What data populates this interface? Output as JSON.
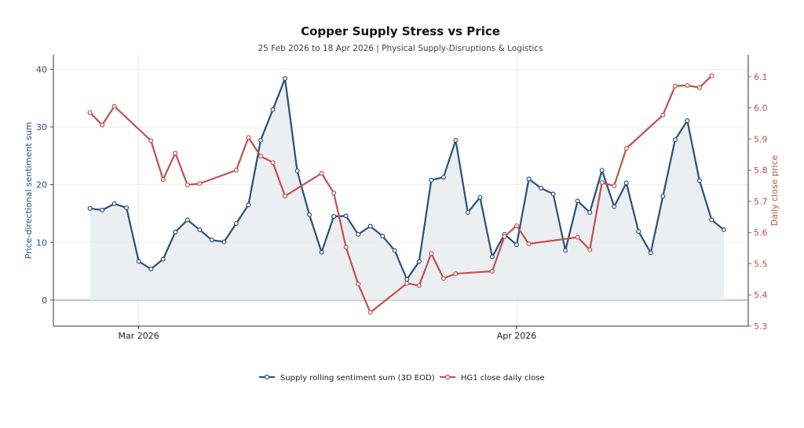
{
  "chart_data": {
    "type": "line",
    "title": "Copper Supply Stress vs Price",
    "subtitle": "25 Feb 2026 to 18 Apr 2026 | Physical Supply-Disruptions & Logistics",
    "ylabel_left": "Price-directional sentiment sum",
    "ylabel_right": "Daily close price",
    "x_ticks": [
      {
        "date": "2026-03-01",
        "label": "Mar 2026"
      },
      {
        "date": "2026-04-01",
        "label": "Apr 2026"
      }
    ],
    "y_left": {
      "range": [
        -4.5,
        42.5
      ],
      "ticks": [
        0,
        10,
        20,
        30,
        40
      ]
    },
    "y_right": {
      "range": [
        5.3,
        6.17
      ],
      "ticks": [
        5.3,
        5.4,
        5.5,
        5.6,
        5.7,
        5.8,
        5.9,
        6.0,
        6.1
      ]
    },
    "x_range": [
      "2026-02-22",
      "2026-04-20"
    ],
    "grid": true,
    "legend_position": "bottom-center",
    "colors": {
      "sentiment": "#2a5078",
      "price": "#c0504d",
      "fill": "#e8ecf0",
      "zero_line": "#888888"
    },
    "series": [
      {
        "name": "Supply rolling sentiment sum (3D EOD)",
        "axis": "left",
        "points": [
          [
            "2026-02-25",
            15.9
          ],
          [
            "2026-02-26",
            15.6
          ],
          [
            "2026-02-27",
            16.7
          ],
          [
            "2026-02-28",
            16.0
          ],
          [
            "2026-03-01",
            6.7
          ],
          [
            "2026-03-02",
            5.4
          ],
          [
            "2026-03-03",
            7.1
          ],
          [
            "2026-03-04",
            11.8
          ],
          [
            "2026-03-05",
            13.9
          ],
          [
            "2026-03-06",
            12.2
          ],
          [
            "2026-03-07",
            10.4
          ],
          [
            "2026-03-08",
            10.1
          ],
          [
            "2026-03-09",
            13.3
          ],
          [
            "2026-03-10",
            16.5
          ],
          [
            "2026-03-11",
            27.7
          ],
          [
            "2026-03-12",
            33.0
          ],
          [
            "2026-03-13",
            38.4
          ],
          [
            "2026-03-14",
            22.4
          ],
          [
            "2026-03-15",
            14.8
          ],
          [
            "2026-03-16",
            8.3
          ],
          [
            "2026-03-17",
            14.5
          ],
          [
            "2026-03-18",
            14.6
          ],
          [
            "2026-03-19",
            11.4
          ],
          [
            "2026-03-20",
            12.8
          ],
          [
            "2026-03-21",
            11.1
          ],
          [
            "2026-03-22",
            8.6
          ],
          [
            "2026-03-23",
            3.6
          ],
          [
            "2026-03-24",
            6.7
          ],
          [
            "2026-03-25",
            20.8
          ],
          [
            "2026-03-26",
            21.3
          ],
          [
            "2026-03-27",
            27.7
          ],
          [
            "2026-03-28",
            15.2
          ],
          [
            "2026-03-29",
            17.8
          ],
          [
            "2026-03-30",
            7.5
          ],
          [
            "2026-03-31",
            11.4
          ],
          [
            "2026-04-01",
            9.6
          ],
          [
            "2026-04-02",
            21.0
          ],
          [
            "2026-04-03",
            19.4
          ],
          [
            "2026-04-04",
            18.4
          ],
          [
            "2026-04-05",
            8.6
          ],
          [
            "2026-04-06",
            17.2
          ],
          [
            "2026-04-07",
            15.2
          ],
          [
            "2026-04-08",
            22.5
          ],
          [
            "2026-04-09",
            16.2
          ],
          [
            "2026-04-10",
            20.3
          ],
          [
            "2026-04-11",
            11.9
          ],
          [
            "2026-04-12",
            8.2
          ],
          [
            "2026-04-13",
            18.0
          ],
          [
            "2026-04-14",
            27.8
          ],
          [
            "2026-04-15",
            31.1
          ],
          [
            "2026-04-16",
            20.7
          ],
          [
            "2026-04-17",
            13.9
          ],
          [
            "2026-04-18",
            12.2
          ]
        ]
      },
      {
        "name": "HG1 close daily close",
        "axis": "right",
        "points": [
          [
            "2026-02-25",
            5.985
          ],
          [
            "2026-02-26",
            5.945
          ],
          [
            "2026-02-27",
            6.005
          ],
          [
            "2026-03-02",
            5.895
          ],
          [
            "2026-03-03",
            5.77
          ],
          [
            "2026-03-04",
            5.855
          ],
          [
            "2026-03-05",
            5.753
          ],
          [
            "2026-03-06",
            5.757
          ],
          [
            "2026-03-09",
            5.8
          ],
          [
            "2026-03-10",
            5.905
          ],
          [
            "2026-03-11",
            5.845
          ],
          [
            "2026-03-12",
            5.825
          ],
          [
            "2026-03-13",
            5.717
          ],
          [
            "2026-03-16",
            5.79
          ],
          [
            "2026-03-17",
            5.727
          ],
          [
            "2026-03-18",
            5.553
          ],
          [
            "2026-03-19",
            5.435
          ],
          [
            "2026-03-20",
            5.344
          ],
          [
            "2026-03-23",
            5.437
          ],
          [
            "2026-03-24",
            5.43
          ],
          [
            "2026-03-25",
            5.533
          ],
          [
            "2026-03-26",
            5.453
          ],
          [
            "2026-03-27",
            5.468
          ],
          [
            "2026-03-30",
            5.476
          ],
          [
            "2026-03-31",
            5.587
          ],
          [
            "2026-04-01",
            5.622
          ],
          [
            "2026-04-02",
            5.564
          ],
          [
            "2026-04-06",
            5.585
          ],
          [
            "2026-04-07",
            5.545
          ],
          [
            "2026-04-08",
            5.76
          ],
          [
            "2026-04-09",
            5.75
          ],
          [
            "2026-04-10",
            5.87
          ],
          [
            "2026-04-13",
            5.977
          ],
          [
            "2026-04-14",
            6.07
          ],
          [
            "2026-04-15",
            6.072
          ],
          [
            "2026-04-16",
            6.065
          ],
          [
            "2026-04-17",
            6.103
          ]
        ]
      }
    ]
  }
}
